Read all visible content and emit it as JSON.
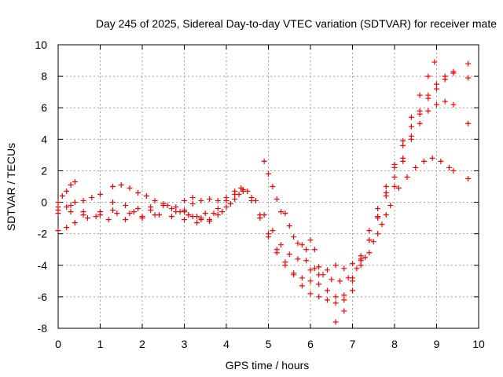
{
  "chart_data": {
    "type": "scatter",
    "title": "Day 245 of 2025, Sidereal Day-to-day VTEC variation (SDTVAR) for receiver mate",
    "xlabel": "GPS time / hours",
    "ylabel": "SDTVAR / TECUs",
    "xlim": [
      0,
      10
    ],
    "ylim": [
      -8,
      10
    ],
    "xticks": [
      "0",
      "1",
      "2",
      "3",
      "4",
      "5",
      "6",
      "7",
      "8",
      "9",
      "10"
    ],
    "yticks": [
      "-8",
      "-6",
      "-4",
      "-2",
      "0",
      "2",
      "4",
      "6",
      "8",
      "10"
    ],
    "grid": true,
    "marker": "plus",
    "color": "#ff0000",
    "series": [
      {
        "points": [
          [
            0.0,
            0.0
          ],
          [
            0.1,
            0.4
          ],
          [
            0.2,
            0.7
          ],
          [
            0.3,
            1.1
          ],
          [
            0.4,
            1.3
          ]
        ]
      },
      {
        "points": [
          [
            0.0,
            -0.7
          ],
          [
            0.2,
            -0.3
          ],
          [
            0.4,
            0.0
          ],
          [
            0.6,
            0.1
          ],
          [
            0.8,
            0.3
          ],
          [
            1.0,
            0.5
          ]
        ]
      },
      {
        "points": [
          [
            0.0,
            -1.8
          ],
          [
            0.2,
            -1.6
          ],
          [
            0.4,
            -1.3
          ],
          [
            0.7,
            -1.0
          ],
          [
            1.0,
            -0.8
          ],
          [
            1.4,
            -0.7
          ],
          [
            1.8,
            -0.6
          ],
          [
            2.2,
            -0.5
          ],
          [
            2.6,
            -0.2
          ],
          [
            3.0,
            0.1
          ],
          [
            3.2,
            0.3
          ]
        ]
      },
      {
        "points": [
          [
            0.0,
            -0.3
          ],
          [
            0.3,
            -0.6
          ],
          [
            0.6,
            -0.8
          ],
          [
            1.0,
            -0.6
          ],
          [
            1.3,
            -0.5
          ],
          [
            1.7,
            -0.7
          ],
          [
            2.0,
            -0.9
          ],
          [
            2.3,
            -0.8
          ],
          [
            2.7,
            -0.9
          ],
          [
            3.0,
            -1.1
          ],
          [
            3.3,
            -1.3
          ],
          [
            3.6,
            -1.1
          ],
          [
            3.9,
            -0.6
          ],
          [
            4.1,
            -0.1
          ],
          [
            4.3,
            0.5
          ],
          [
            4.4,
            0.8
          ]
        ]
      },
      {
        "points": [
          [
            0.0,
            -0.5
          ],
          [
            0.3,
            -0.2
          ],
          [
            0.6,
            -0.6
          ],
          [
            0.9,
            -0.9
          ],
          [
            1.2,
            -1.1
          ],
          [
            1.6,
            -1.1
          ],
          [
            2.0,
            -1.0
          ],
          [
            2.4,
            -0.8
          ],
          [
            2.8,
            -0.6
          ],
          [
            3.1,
            -0.8
          ],
          [
            3.4,
            -1.0
          ],
          [
            3.7,
            -0.7
          ],
          [
            4.0,
            -0.3
          ],
          [
            4.2,
            0.2
          ]
        ]
      },
      {
        "points": [
          [
            1.3,
            1.0
          ],
          [
            1.5,
            1.1
          ],
          [
            1.7,
            0.9
          ],
          [
            1.9,
            0.6
          ],
          [
            2.1,
            0.4
          ],
          [
            2.3,
            0.1
          ],
          [
            2.5,
            -0.2
          ],
          [
            2.7,
            -0.4
          ],
          [
            2.9,
            -0.6
          ],
          [
            3.1,
            -0.8
          ],
          [
            3.3,
            -0.9
          ],
          [
            3.5,
            -0.7
          ],
          [
            3.8,
            -0.4
          ],
          [
            4.0,
            0.1
          ],
          [
            4.2,
            0.5
          ]
        ]
      },
      {
        "points": [
          [
            1.3,
            0.0
          ],
          [
            1.6,
            -0.2
          ],
          [
            1.9,
            -0.4
          ],
          [
            2.2,
            -0.3
          ],
          [
            2.5,
            -0.1
          ],
          [
            2.8,
            -0.3
          ],
          [
            3.0,
            -0.6
          ],
          [
            3.2,
            -0.9
          ],
          [
            3.4,
            -1.1
          ],
          [
            3.6,
            -1.2
          ],
          [
            3.8,
            -0.8
          ]
        ]
      },
      {
        "points": [
          [
            3.0,
            -0.5
          ],
          [
            3.2,
            -0.1
          ],
          [
            3.4,
            0.1
          ],
          [
            3.6,
            0.2
          ],
          [
            3.8,
            0.1
          ],
          [
            4.0,
            0.3
          ],
          [
            4.2,
            0.7
          ],
          [
            4.35,
            0.9
          ],
          [
            4.5,
            0.7
          ],
          [
            4.7,
            0.1
          ],
          [
            4.9,
            -0.8
          ],
          [
            5.1,
            -1.8
          ],
          [
            5.3,
            -2.7
          ],
          [
            5.5,
            -3.3
          ],
          [
            5.7,
            -3.6
          ],
          [
            5.9,
            -3.7
          ],
          [
            6.1,
            -4.2
          ],
          [
            6.3,
            -4.6
          ],
          [
            6.5,
            -4.9
          ],
          [
            6.7,
            -5.0
          ],
          [
            6.9,
            -4.8
          ],
          [
            7.1,
            -4.2
          ],
          [
            7.3,
            -3.5
          ],
          [
            7.5,
            -2.5
          ],
          [
            7.7,
            -1.4
          ],
          [
            7.9,
            -0.2
          ],
          [
            8.1,
            0.9
          ],
          [
            8.3,
            1.6
          ],
          [
            8.5,
            2.2
          ],
          [
            8.7,
            2.6
          ],
          [
            8.9,
            2.8
          ],
          [
            9.1,
            2.6
          ],
          [
            9.3,
            2.2
          ],
          [
            9.4,
            2.0
          ]
        ]
      },
      {
        "points": [
          [
            4.4,
            0.7
          ],
          [
            4.6,
            0.1
          ],
          [
            4.8,
            -1.0
          ],
          [
            5.0,
            -2.2
          ],
          [
            5.2,
            -3.2
          ],
          [
            5.4,
            -4.0
          ],
          [
            5.6,
            -4.5
          ],
          [
            5.8,
            -4.8
          ],
          [
            6.0,
            -5.0
          ],
          [
            6.2,
            -5.2
          ],
          [
            6.4,
            -5.6
          ],
          [
            6.6,
            -6.0
          ],
          [
            6.8,
            -5.9
          ],
          [
            7.0,
            -4.8
          ],
          [
            7.2,
            -3.6
          ],
          [
            7.4,
            -2.4
          ],
          [
            7.6,
            -1.0
          ],
          [
            7.8,
            0.4
          ],
          [
            8.0,
            1.6
          ],
          [
            8.2,
            2.8
          ],
          [
            8.4,
            4.0
          ],
          [
            8.6,
            5.0
          ],
          [
            8.8,
            5.8
          ],
          [
            9.0,
            6.2
          ],
          [
            9.2,
            6.4
          ],
          [
            9.4,
            6.2
          ]
        ]
      },
      {
        "points": [
          [
            4.6,
            0.3
          ],
          [
            4.8,
            -0.8
          ],
          [
            5.0,
            -2.0
          ],
          [
            5.2,
            -3.0
          ],
          [
            5.4,
            -3.8
          ],
          [
            5.6,
            -4.6
          ],
          [
            5.8,
            -5.3
          ],
          [
            6.0,
            -5.8
          ],
          [
            6.2,
            -6.0
          ],
          [
            6.4,
            -6.2
          ],
          [
            6.6,
            -6.4
          ],
          [
            6.8,
            -6.2
          ],
          [
            7.0,
            -5.0
          ],
          [
            7.2,
            -3.4
          ],
          [
            7.4,
            -1.8
          ],
          [
            7.6,
            -0.4
          ],
          [
            7.8,
            1.0
          ],
          [
            8.0,
            2.4
          ],
          [
            8.2,
            3.6
          ],
          [
            8.4,
            4.8
          ],
          [
            8.6,
            5.8
          ],
          [
            8.8,
            6.8
          ],
          [
            9.0,
            7.5
          ],
          [
            9.2,
            8.0
          ],
          [
            9.4,
            8.3
          ]
        ]
      },
      {
        "points": [
          [
            6.6,
            -7.6
          ],
          [
            6.8,
            -6.9
          ],
          [
            7.0,
            -5.6
          ],
          [
            7.2,
            -4.0
          ],
          [
            7.4,
            -2.4
          ],
          [
            7.6,
            -0.9
          ],
          [
            7.8,
            0.6
          ],
          [
            8.0,
            2.2
          ],
          [
            8.2,
            3.9
          ],
          [
            8.4,
            5.4
          ],
          [
            8.6,
            6.8
          ],
          [
            8.8,
            8.0
          ],
          [
            8.95,
            8.9
          ]
        ]
      },
      {
        "points": [
          [
            6.0,
            -4.3
          ],
          [
            6.2,
            -4.6
          ],
          [
            6.4,
            -4.3
          ],
          [
            6.6,
            -4.0
          ],
          [
            6.8,
            -4.2
          ],
          [
            7.0,
            -3.9
          ],
          [
            7.2,
            -3.7
          ],
          [
            7.4,
            -3.2
          ],
          [
            7.6,
            -2.0
          ],
          [
            7.8,
            -0.8
          ],
          [
            8.0,
            1.0
          ],
          [
            8.2,
            2.6
          ],
          [
            8.4,
            4.2
          ],
          [
            8.6,
            5.6
          ],
          [
            8.8,
            6.6
          ],
          [
            9.0,
            7.2
          ],
          [
            9.2,
            7.8
          ],
          [
            9.4,
            8.2
          ]
        ]
      },
      {
        "points": [
          [
            4.9,
            2.6
          ],
          [
            5.0,
            1.8
          ],
          [
            5.1,
            1.0
          ],
          [
            5.2,
            0.2
          ],
          [
            5.3,
            -0.6
          ],
          [
            5.4,
            -0.7
          ],
          [
            5.5,
            -1.5
          ],
          [
            5.6,
            -2.2
          ],
          [
            5.7,
            -2.6
          ],
          [
            5.8,
            -2.7
          ],
          [
            5.9,
            -3.0
          ],
          [
            6.0,
            -2.4
          ],
          [
            6.1,
            -3.0
          ],
          [
            6.2,
            -4.1
          ]
        ]
      },
      {
        "points": [
          [
            9.75,
            8.8
          ],
          [
            9.75,
            7.9
          ],
          [
            9.75,
            5.0
          ],
          [
            9.75,
            1.5
          ]
        ]
      }
    ]
  }
}
